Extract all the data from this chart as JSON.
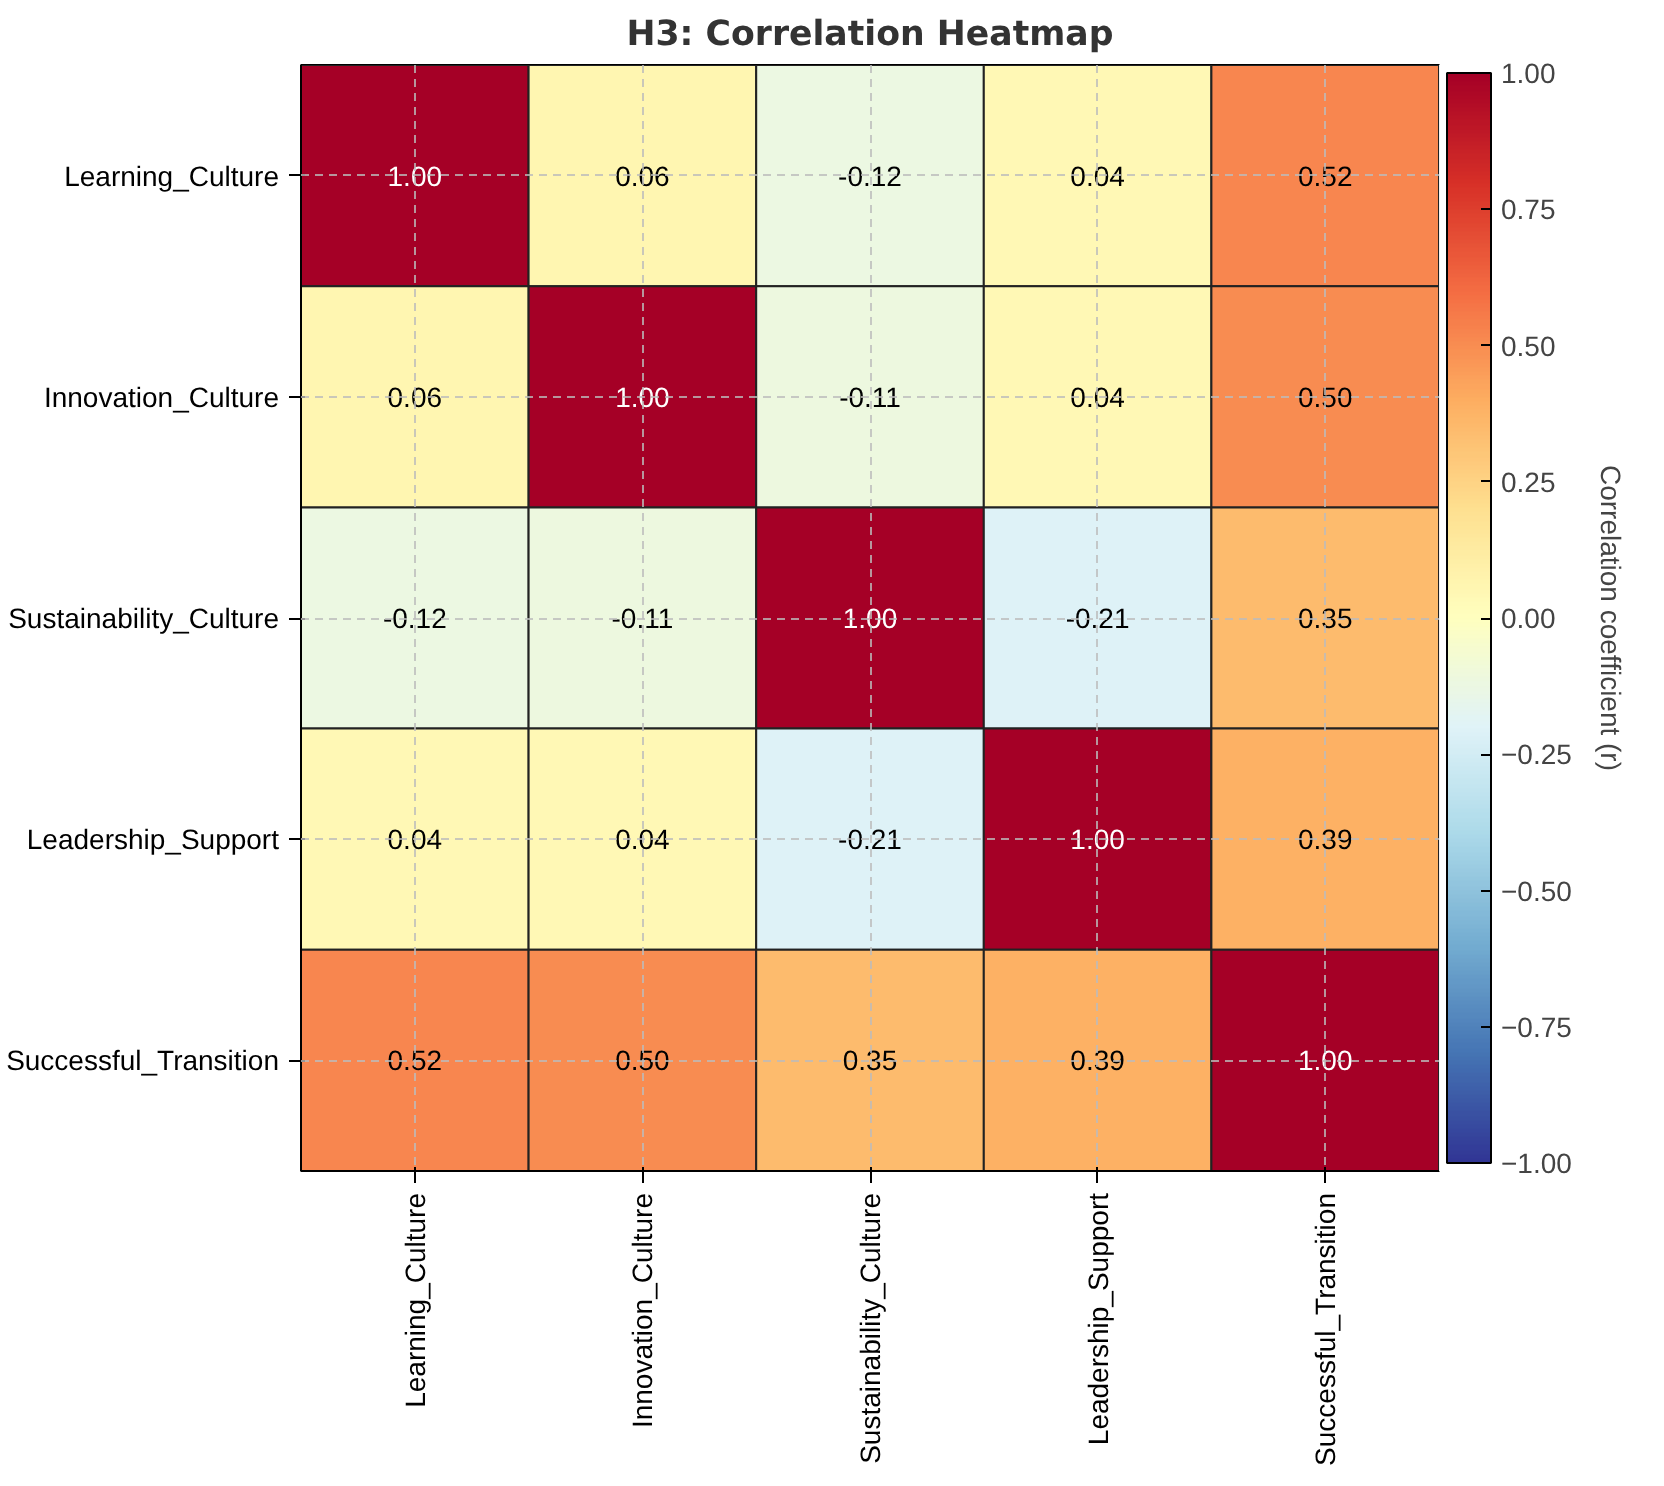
{
  "chart_data": {
    "type": "heatmap",
    "title": "H3: Correlation Heatmap",
    "categories": [
      "Learning_Culture",
      "Innovation_Culture",
      "Sustainability_Culture",
      "Leadership_Support",
      "Successful_Transition"
    ],
    "y_categories": [
      "Learning_Culture",
      "Innovation_Culture",
      "Sustainability_Culture",
      "Leadership_Support",
      "Successful_Transition"
    ],
    "cells": [
      [
        1.0,
        0.06,
        -0.12,
        0.04,
        0.52
      ],
      [
        0.06,
        1.0,
        -0.11,
        0.04,
        0.5
      ],
      [
        -0.12,
        -0.11,
        1.0,
        -0.21,
        0.35
      ],
      [
        0.04,
        0.04,
        -0.21,
        1.0,
        0.39
      ],
      [
        0.52,
        0.5,
        0.35,
        0.39,
        1.0
      ]
    ],
    "cell_labels": [
      [
        "1.00",
        "0.06",
        "-0.12",
        "0.04",
        "0.52"
      ],
      [
        "0.06",
        "1.00",
        "-0.11",
        "0.04",
        "0.50"
      ],
      [
        "-0.12",
        "-0.11",
        "1.00",
        "-0.21",
        "0.35"
      ],
      [
        "0.04",
        "0.04",
        "-0.21",
        "1.00",
        "0.39"
      ],
      [
        "0.52",
        "0.50",
        "0.35",
        "0.39",
        "1.00"
      ]
    ],
    "clabel": "Correlation coefficient (r)",
    "clim": [
      -1,
      1
    ],
    "cticks": [
      {
        "value": -1,
        "label": "−1.00"
      },
      {
        "value": -0.75,
        "label": "−0.75"
      },
      {
        "value": -0.5,
        "label": "−0.50"
      },
      {
        "value": -0.25,
        "label": "−0.25"
      },
      {
        "value": 0,
        "label": "0.00"
      },
      {
        "value": 0.25,
        "label": "0.25"
      },
      {
        "value": 0.5,
        "label": "0.50"
      },
      {
        "value": 0.75,
        "label": "0.75"
      },
      {
        "value": 1,
        "label": "1.00"
      }
    ],
    "grid": true
  }
}
